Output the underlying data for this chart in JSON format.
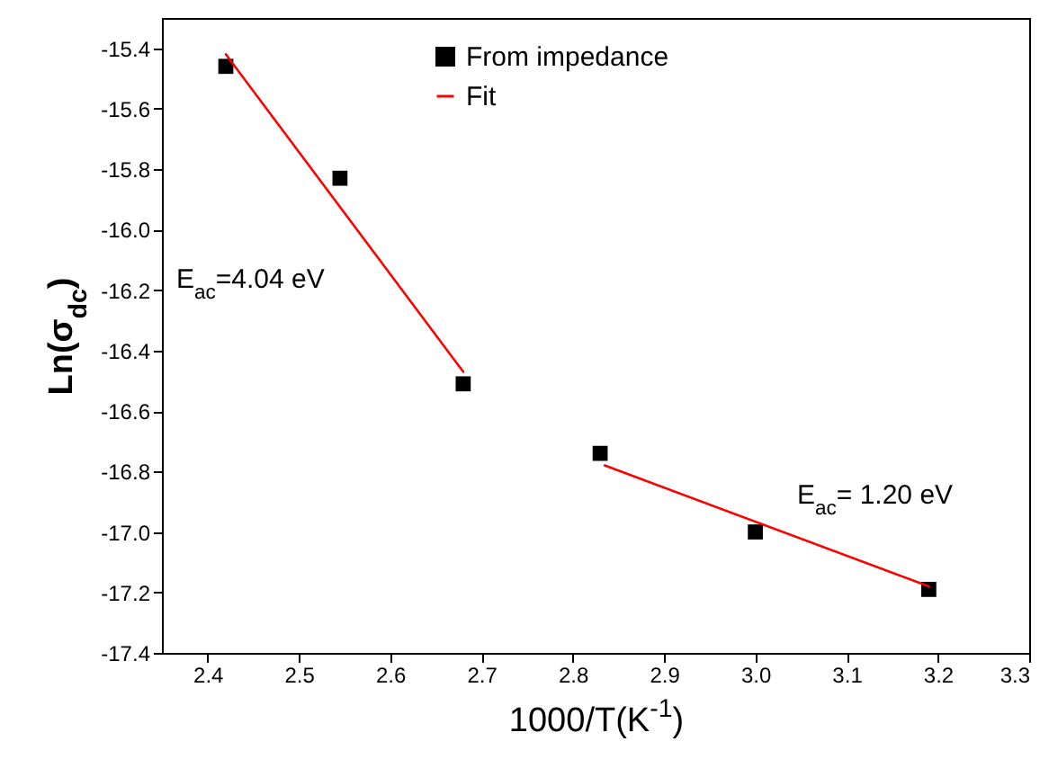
{
  "chart_data": {
    "type": "scatter",
    "xlabel": "1000/T(K$^{-1}$)",
    "ylabel": "Ln(σ$_{dc}$)",
    "x": [
      2.42,
      2.545,
      2.68,
      2.83,
      3.0,
      3.19
    ],
    "series": [
      {
        "name": "From impedance",
        "color": "#000000",
        "marker": "square",
        "values": [
          -15.46,
          -15.83,
          -16.51,
          -16.74,
          -17.0,
          -17.19
        ]
      },
      {
        "name": "Fit",
        "color": "#ff0000",
        "type": "line",
        "x": [
          2.42,
          2.68,
          2.76,
          2.835,
          3.19
        ],
        "values": [
          -15.42,
          -16.47,
          null,
          -16.78,
          -17.18
        ]
      }
    ],
    "annotations": [
      "E$_{ac}$=4.04 eV",
      "E$_{ac}$= 1.20 eV"
    ],
    "xlim": [
      2.35,
      3.3
    ],
    "ylim": [
      -17.4,
      -15.3
    ],
    "xticks": [
      2.4,
      2.5,
      2.6,
      2.7,
      2.8,
      2.9,
      {
        "value": 3,
        "label": "3.0"
      },
      3.1,
      3.2,
      3.3
    ],
    "yticks": [
      -15.4,
      -15.6,
      -15.8,
      {
        "value": -16,
        "label": "-16.0"
      },
      -16.2,
      -16.4,
      -16.6,
      -16.8,
      {
        "value": -17,
        "label": "-17.0"
      },
      -17.2,
      -17.4
    ],
    "grid": false,
    "legend": "top"
  }
}
